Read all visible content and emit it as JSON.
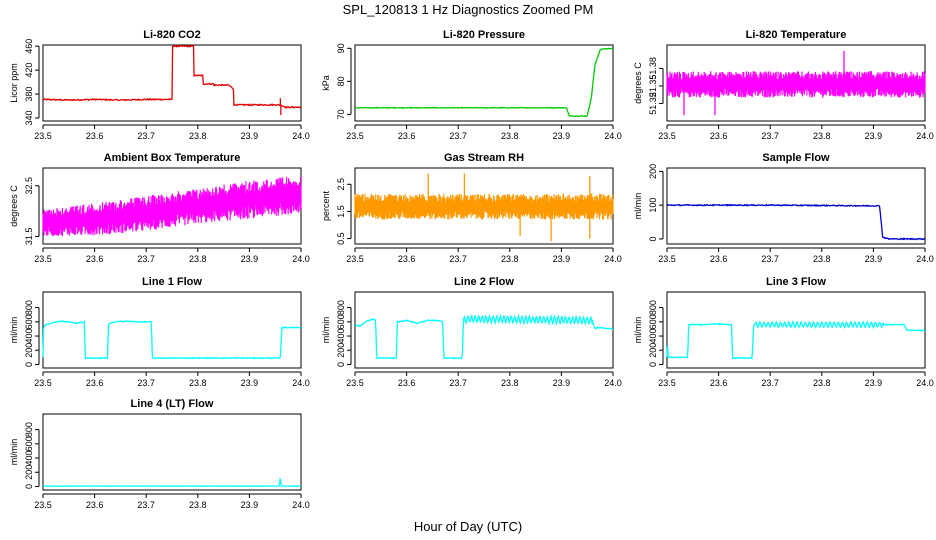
{
  "title": "SPL_120813 1 Hz Diagnostics Zoomed PM",
  "xlabel": "Hour of Day (UTC)",
  "chart_data": [
    {
      "type": "line",
      "title": "Li-820 CO2",
      "ylabel": "Licor ppm",
      "color": "#e00000",
      "xlim": [
        23.5,
        24.0
      ],
      "ylim": [
        335,
        462
      ],
      "xticks": [
        "23.5",
        "23.6",
        "23.7",
        "23.8",
        "23.9",
        "24.0"
      ],
      "yticks": [
        340,
        380,
        420,
        460
      ],
      "series": [
        {
          "x": [
            23.5,
            23.55,
            23.6,
            23.65,
            23.7,
            23.75,
            23.75,
            23.777,
            23.792,
            23.792,
            23.81,
            23.81,
            23.83,
            23.83,
            23.86,
            23.87,
            23.87,
            23.92,
            23.95,
            23.96,
            23.96,
            23.97,
            24.0
          ],
          "y": [
            371,
            370,
            371,
            370,
            371,
            371,
            460,
            460,
            460,
            411,
            411,
            397,
            397,
            395,
            395,
            388,
            362,
            362,
            362,
            362,
            362,
            358,
            358
          ]
        }
      ],
      "noise": 1.0,
      "spikes": [
        {
          "x": 23.96,
          "y": 373
        },
        {
          "x": 23.961,
          "y": 345
        }
      ]
    },
    {
      "type": "line",
      "title": "Li-820 Pressure",
      "ylabel": "kPa",
      "color": "#00cc00",
      "xlim": [
        23.5,
        24.0
      ],
      "ylim": [
        68,
        91
      ],
      "xticks": [
        "23.5",
        "23.6",
        "23.7",
        "23.8",
        "23.9",
        "24.0"
      ],
      "yticks": [
        70,
        80,
        90
      ],
      "series": [
        {
          "x": [
            23.5,
            23.8,
            23.91,
            23.915,
            23.95,
            23.958,
            23.965,
            23.975,
            23.98,
            24.0
          ],
          "y": [
            72,
            72,
            72,
            69.5,
            69.5,
            75,
            85,
            89.5,
            89.8,
            90
          ]
        }
      ],
      "noise": 0.1
    },
    {
      "type": "band",
      "title": "Li-820 Temperature",
      "ylabel": "degrees C",
      "color": "#ff00ff",
      "xlim": [
        23.5,
        24.0
      ],
      "ylim": [
        51.29,
        51.42
      ],
      "xticks": [
        "23.5",
        "23.6",
        "23.7",
        "23.8",
        "23.9",
        "24.0"
      ],
      "yticks": [
        51.32,
        51.35,
        51.38
      ],
      "low": 51.33,
      "high": 51.375,
      "spikes": [
        {
          "x": 23.533,
          "y": 51.3
        },
        {
          "x": 23.593,
          "y": 51.3
        },
        {
          "x": 23.843,
          "y": 51.41
        }
      ]
    },
    {
      "type": "band",
      "title": "Ambient Box Temperature",
      "ylabel": "degrees C",
      "color": "#ff00ff",
      "xlim": [
        23.5,
        24.0
      ],
      "ylim": [
        31.35,
        32.85
      ],
      "xticks": [
        "23.5",
        "23.6",
        "23.7",
        "23.8",
        "23.9",
        "24.0"
      ],
      "yticks": [
        31.5,
        32.5
      ],
      "band_x": [
        23.5,
        23.6,
        23.7,
        23.8,
        23.9,
        24.0
      ],
      "band_low": [
        31.5,
        31.52,
        31.6,
        31.75,
        31.85,
        31.95
      ],
      "band_high": [
        32.05,
        32.15,
        32.3,
        32.45,
        32.6,
        32.7
      ]
    },
    {
      "type": "band",
      "title": "Gas Stream RH",
      "ylabel": "percent",
      "color": "#ff9900",
      "xlim": [
        23.5,
        24.0
      ],
      "ylim": [
        0.3,
        3.1
      ],
      "xticks": [
        "23.5",
        "23.6",
        "23.7",
        "23.8",
        "23.9",
        "24.0"
      ],
      "yticks": [
        0.5,
        1.5,
        2.5
      ],
      "low": 1.2,
      "high": 2.15,
      "spikes": [
        {
          "x": 23.642,
          "y": 2.9
        },
        {
          "x": 23.712,
          "y": 2.9
        },
        {
          "x": 23.955,
          "y": 2.8
        },
        {
          "x": 23.82,
          "y": 0.6
        },
        {
          "x": 23.88,
          "y": 0.4
        },
        {
          "x": 23.955,
          "y": 0.5
        }
      ]
    },
    {
      "type": "line",
      "title": "Sample Flow",
      "ylabel": "ml/min",
      "color": "#0000cc",
      "xlim": [
        23.5,
        24.0
      ],
      "ylim": [
        -15,
        210
      ],
      "xticks": [
        "23.5",
        "23.6",
        "23.7",
        "23.8",
        "23.9",
        "24.0"
      ],
      "yticks": [
        0,
        100,
        200
      ],
      "series": [
        {
          "x": [
            23.5,
            23.7,
            23.9,
            23.912,
            23.918,
            23.93,
            24.0
          ],
          "y": [
            100,
            100,
            98,
            98,
            5,
            0,
            0
          ]
        }
      ],
      "noise": 1.5
    },
    {
      "type": "line",
      "title": "Line 1 Flow",
      "ylabel": "ml/min",
      "color": "#00ffff",
      "xlim": [
        23.5,
        24.0
      ],
      "ylim": [
        -50,
        1020
      ],
      "xticks": [
        "23.5",
        "23.6",
        "23.7",
        "23.8",
        "23.9",
        "24.0"
      ],
      "yticks": [
        0,
        200,
        400,
        600,
        800
      ],
      "series": [
        {
          "x": [
            23.5,
            23.5,
            23.505,
            23.52,
            23.535,
            23.55,
            23.565,
            23.58,
            23.582,
            23.625,
            23.627,
            23.63,
            23.64,
            23.66,
            23.68,
            23.7,
            23.71,
            23.712,
            23.96,
            23.962,
            23.963,
            24.0
          ],
          "y": [
            100,
            500,
            560,
            590,
            610,
            600,
            580,
            600,
            90,
            90,
            550,
            580,
            600,
            610,
            600,
            600,
            600,
            90,
            90,
            380,
            520,
            520
          ]
        }
      ],
      "noise": 6
    },
    {
      "type": "line",
      "title": "Line 2 Flow",
      "ylabel": "ml/min",
      "color": "#00ffff",
      "xlim": [
        23.5,
        24.0
      ],
      "ylim": [
        -50,
        1020
      ],
      "xticks": [
        "23.5",
        "23.6",
        "23.7",
        "23.8",
        "23.9",
        "24.0"
      ],
      "yticks": [
        0,
        200,
        400,
        600,
        800
      ],
      "series": [
        {
          "x": [
            23.5,
            23.51,
            23.52,
            23.535,
            23.54,
            23.542,
            23.58,
            23.582,
            23.6,
            23.62,
            23.64,
            23.66,
            23.67,
            23.672,
            23.708,
            23.71,
            23.72,
            23.96,
            23.965,
            23.97,
            24.0
          ],
          "y": [
            560,
            540,
            600,
            640,
            620,
            90,
            90,
            600,
            620,
            580,
            620,
            620,
            600,
            90,
            90,
            620,
            640,
            620,
            500,
            520,
            500
          ]
        }
      ],
      "noise": 6,
      "ripple": {
        "start": 23.71,
        "end": 23.96,
        "amp": 45,
        "period": 0.007
      }
    },
    {
      "type": "line",
      "title": "Line 3 Flow",
      "ylabel": "ml/min",
      "color": "#00ffff",
      "xlim": [
        23.5,
        24.0
      ],
      "ylim": [
        -50,
        1020
      ],
      "xticks": [
        "23.5",
        "23.6",
        "23.7",
        "23.8",
        "23.9",
        "24.0"
      ],
      "yticks": [
        0,
        200,
        400,
        600,
        800
      ],
      "series": [
        {
          "x": [
            23.5,
            23.5,
            23.502,
            23.505,
            23.54,
            23.542,
            23.575,
            23.58,
            23.6,
            23.62,
            23.625,
            23.627,
            23.665,
            23.668,
            23.7,
            23.96,
            23.965,
            24.0
          ],
          "y": [
            100,
            520,
            100,
            100,
            100,
            560,
            560,
            570,
            570,
            560,
            560,
            90,
            90,
            560,
            560,
            560,
            480,
            480
          ]
        }
      ],
      "noise": 6,
      "ripple": {
        "start": 23.67,
        "end": 23.92,
        "amp": 35,
        "period": 0.008
      }
    },
    {
      "type": "line",
      "title": "Line 4 (LT) Flow",
      "ylabel": "ml/min",
      "color": "#00ffff",
      "xlim": [
        23.5,
        24.0
      ],
      "ylim": [
        -50,
        1020
      ],
      "xticks": [
        "23.5",
        "23.6",
        "23.7",
        "23.8",
        "23.9",
        "24.0"
      ],
      "yticks": [
        0,
        200,
        400,
        600,
        800
      ],
      "series": [
        {
          "x": [
            23.5,
            23.958,
            23.96,
            23.962,
            24.0
          ],
          "y": [
            5,
            5,
            130,
            5,
            5
          ]
        }
      ],
      "noise": 2
    }
  ]
}
